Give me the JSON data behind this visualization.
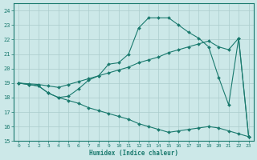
{
  "xlabel": "Humidex (Indice chaleur)",
  "xlim": [
    -0.5,
    23.5
  ],
  "ylim": [
    15,
    24.5
  ],
  "yticks": [
    15,
    16,
    17,
    18,
    19,
    20,
    21,
    22,
    23,
    24
  ],
  "xticks": [
    0,
    1,
    2,
    3,
    4,
    5,
    6,
    7,
    8,
    9,
    10,
    11,
    12,
    13,
    14,
    15,
    16,
    17,
    18,
    19,
    20,
    21,
    22,
    23
  ],
  "background_color": "#cce8e8",
  "grid_color": "#aacccc",
  "line_color": "#1a7a6e",
  "line1_y": [
    19.0,
    18.9,
    18.8,
    18.3,
    18.0,
    18.1,
    18.6,
    19.2,
    19.5,
    20.3,
    20.4,
    21.0,
    22.8,
    23.5,
    23.5,
    23.5,
    23.0,
    22.5,
    22.1,
    21.5,
    19.4,
    17.5,
    22.1,
    15.3
  ],
  "line2_y": [
    19.0,
    18.95,
    18.9,
    18.8,
    18.7,
    18.9,
    19.1,
    19.3,
    19.5,
    19.7,
    19.9,
    20.1,
    20.4,
    20.6,
    20.8,
    21.1,
    21.3,
    21.5,
    21.7,
    21.9,
    21.5,
    21.3,
    22.1,
    15.3
  ],
  "line3_y": [
    19.0,
    18.9,
    18.8,
    18.3,
    18.0,
    17.8,
    17.6,
    17.3,
    17.1,
    16.9,
    16.7,
    16.5,
    16.2,
    16.0,
    15.8,
    15.6,
    15.7,
    15.8,
    15.9,
    16.0,
    15.9,
    15.7,
    15.5,
    15.3
  ]
}
